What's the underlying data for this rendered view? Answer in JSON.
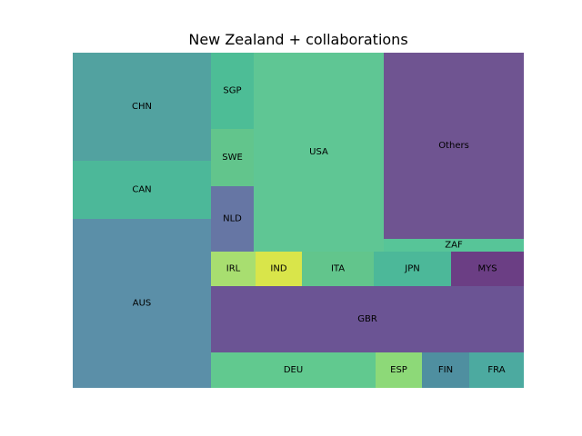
{
  "chart_data": {
    "type": "treemap",
    "title": "New Zealand + collaborations",
    "values_estimated": true,
    "cells": [
      {
        "label": "AUS",
        "value": 2780,
        "color": "#5b8fa8"
      },
      {
        "label": "CHN",
        "value": 1790,
        "color": "#52a2a0"
      },
      {
        "label": "CAN",
        "value": 970,
        "color": "#4cb899"
      },
      {
        "label": "SGP",
        "value": 390,
        "color": "#4dbd96"
      },
      {
        "label": "SWE",
        "value": 300,
        "color": "#62c58c"
      },
      {
        "label": "NLD",
        "value": 340,
        "color": "#6676a4"
      },
      {
        "label": "USA",
        "value": 3160,
        "color": "#5fc694"
      },
      {
        "label": "Others",
        "value": 3160,
        "color": "#6f5491"
      },
      {
        "label": "ZAF",
        "value": 200,
        "color": "#57c598"
      },
      {
        "label": "IRL",
        "value": 190,
        "color": "#a8de70"
      },
      {
        "label": "IND",
        "value": 190,
        "color": "#d9e54a"
      },
      {
        "label": "ITA",
        "value": 300,
        "color": "#62c58c"
      },
      {
        "label": "JPN",
        "value": 320,
        "color": "#4cb899"
      },
      {
        "label": "MYS",
        "value": 300,
        "color": "#6b3e84"
      },
      {
        "label": "GBR",
        "value": 2500,
        "color": "#6b5494"
      },
      {
        "label": "DEU",
        "value": 690,
        "color": "#61c98f"
      },
      {
        "label": "ESP",
        "value": 190,
        "color": "#8dd978"
      },
      {
        "label": "FIN",
        "value": 200,
        "color": "#4f8fa0"
      },
      {
        "label": "FRA",
        "value": 230,
        "color": "#4caaa0"
      }
    ]
  }
}
